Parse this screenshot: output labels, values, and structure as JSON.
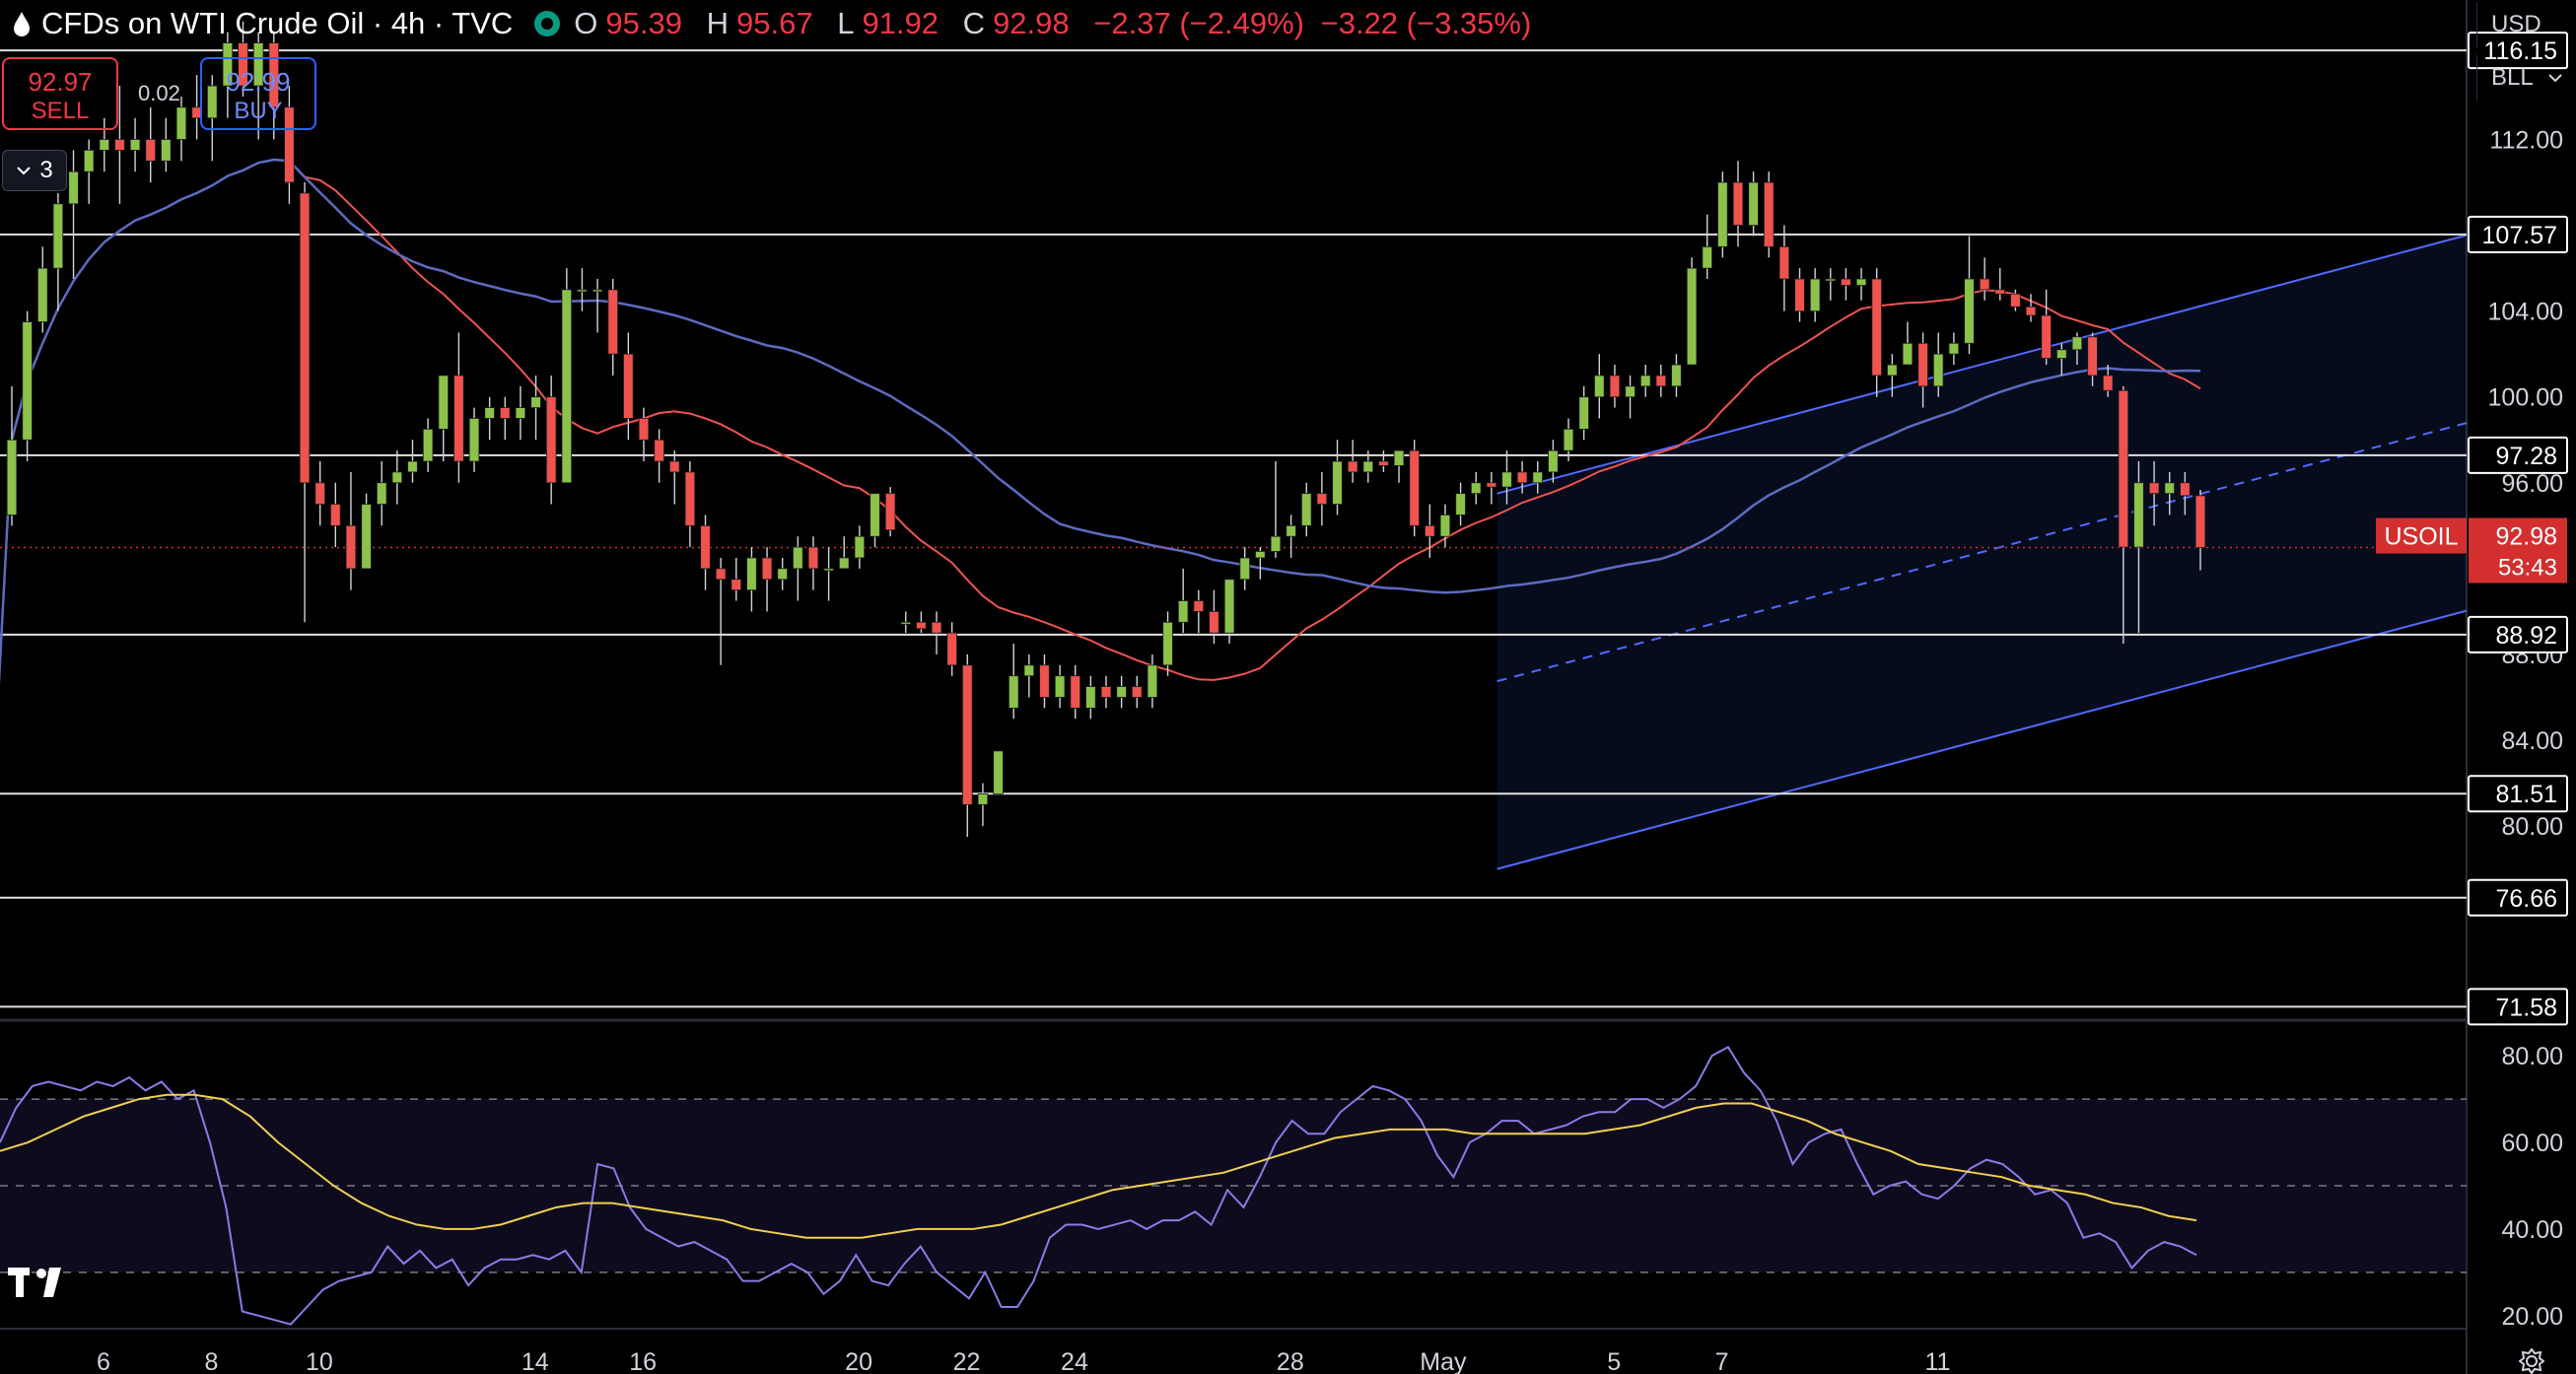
{
  "header": {
    "title": "CFDs on WTI Crude Oil · 4h · TVC",
    "ohlc": {
      "o_label": "O",
      "o": "95.39",
      "h_label": "H",
      "h": "95.67",
      "l_label": "L",
      "l": "91.92",
      "c_label": "C",
      "c": "92.98",
      "change": "−2.37 (−2.49%)",
      "change2": "−3.22 (−3.35%)"
    }
  },
  "trade": {
    "sell_price": "92.97",
    "sell_label": "SELL",
    "spread": "0.02",
    "buy_price": "92.99",
    "buy_label": "BUY"
  },
  "indicators_toggle": {
    "count": "3"
  },
  "currency": {
    "unit": "USD",
    "measure": "BLL"
  },
  "colors": {
    "bg": "#000000",
    "up": "#26a69a",
    "up_body": "#8bc34a",
    "down": "#ef5350",
    "ma_fast": "#ef5350",
    "ma_slow": "#5c6bc0",
    "channel": "#4f6bff",
    "rsi": "#8c7ae6",
    "rsi_ma": "#f0d050",
    "price_tag": "#d32f2f"
  },
  "icons": [
    "oil-drop-icon",
    "market-status-icon",
    "chevron-down-icon",
    "settings-gear-icon",
    "tradingview-logo-icon"
  ],
  "chart_data": {
    "type": "candlestick",
    "symbol": "USOIL",
    "interval": "4h",
    "x_ticks": [
      "6",
      "8",
      "10",
      "14",
      "16",
      "20",
      "22",
      "24",
      "28",
      "May",
      "5",
      "7",
      "11"
    ],
    "price_ylim": [
      71.0,
      118.5
    ],
    "price_y_ticks": [
      "112.00",
      "104.00",
      "100.00",
      "96.00",
      "88.00",
      "84.00",
      "80.00"
    ],
    "level_labels": [
      "116.15",
      "107.57",
      "97.28",
      "88.92",
      "81.51",
      "76.66",
      "71.58"
    ],
    "levels": [
      116.15,
      107.57,
      97.28,
      88.92,
      81.51,
      76.66,
      71.58
    ],
    "last_price": {
      "label": "USOIL",
      "value": "92.98",
      "countdown": "53:43",
      "price": 92.98
    },
    "channel": {
      "start": [
        15.5,
        78
      ],
      "end_upper": [
        37,
        119.5
      ],
      "width": 17.5
    },
    "candles": [
      [
        94.5,
        100.5,
        94,
        98
      ],
      [
        98,
        104,
        97,
        103.5
      ],
      [
        103.5,
        107,
        103,
        106
      ],
      [
        106,
        109.5,
        104,
        109
      ],
      [
        109,
        111.5,
        105.5,
        110.5
      ],
      [
        110.5,
        112,
        109,
        111.5
      ],
      [
        111.5,
        113,
        110.5,
        112
      ],
      [
        112,
        114.5,
        109,
        111.5
      ],
      [
        111.5,
        113,
        110.5,
        112
      ],
      [
        112,
        113.5,
        110,
        111
      ],
      [
        111,
        113,
        110.5,
        112
      ],
      [
        112,
        114,
        111,
        113.5
      ],
      [
        113.5,
        115,
        112,
        113
      ],
      [
        113,
        115,
        111,
        114.5
      ],
      [
        114.5,
        117,
        113,
        116.5
      ],
      [
        116.5,
        117.5,
        114,
        114.5
      ],
      [
        114.5,
        117,
        112,
        116.5
      ],
      [
        116.5,
        117,
        112,
        113.5
      ],
      [
        113.5,
        114.5,
        109,
        110
      ],
      [
        109.5,
        110,
        89.5,
        96
      ],
      [
        96,
        97,
        94,
        95
      ],
      [
        95,
        96,
        93,
        94
      ],
      [
        94,
        96.5,
        91,
        92
      ],
      [
        92,
        95.5,
        92,
        95
      ],
      [
        95,
        97,
        94,
        96
      ],
      [
        96,
        97.5,
        95,
        96.5
      ],
      [
        96.5,
        98,
        96,
        97
      ],
      [
        97,
        99,
        96.5,
        98.5
      ],
      [
        98.5,
        101,
        97,
        101
      ],
      [
        101,
        103,
        96,
        97
      ],
      [
        97,
        99.5,
        96.5,
        99
      ],
      [
        99,
        100,
        98,
        99.5
      ],
      [
        99.5,
        100,
        98,
        99
      ],
      [
        99,
        100.5,
        98,
        99.5
      ],
      [
        99.5,
        101,
        98,
        100
      ],
      [
        100,
        101,
        95,
        96
      ],
      [
        96,
        106,
        96,
        105
      ],
      [
        105,
        106,
        104,
        105
      ],
      [
        105,
        105.5,
        103,
        105
      ],
      [
        105,
        105.5,
        101,
        102
      ],
      [
        102,
        103,
        98,
        99
      ],
      [
        99,
        99.5,
        97,
        98
      ],
      [
        98,
        98.5,
        96,
        97
      ],
      [
        97,
        97.5,
        95,
        96.5
      ],
      [
        96.5,
        97,
        93,
        94
      ],
      [
        94,
        94.5,
        91,
        92
      ],
      [
        92,
        92.5,
        87.5,
        91.5
      ],
      [
        91.5,
        92.5,
        90.5,
        91
      ],
      [
        91,
        93,
        90,
        92.5
      ],
      [
        92.5,
        93,
        90,
        91.5
      ],
      [
        91.5,
        92.5,
        91,
        92
      ],
      [
        92,
        93.5,
        90.5,
        93
      ],
      [
        93,
        93.5,
        91,
        92
      ],
      [
        92,
        93,
        90.5,
        92
      ],
      [
        92,
        93.5,
        92,
        92.5
      ],
      [
        92.5,
        94,
        92,
        93.5
      ],
      [
        93.5,
        95.5,
        93,
        95.5
      ],
      [
        95.5,
        95.8,
        93.5,
        93.8
      ],
      [
        89.5,
        90,
        89,
        89.5
      ],
      [
        89.5,
        90,
        89,
        89.2
      ],
      [
        89.5,
        90,
        88,
        89
      ],
      [
        89,
        89.5,
        87,
        87.5
      ],
      [
        87.5,
        88,
        79.5,
        81
      ],
      [
        81,
        82,
        80,
        81.5
      ],
      [
        81.5,
        83.5,
        81.5,
        83.5
      ],
      [
        85.5,
        88.5,
        85,
        87
      ],
      [
        87,
        88,
        86,
        87.5
      ],
      [
        87.5,
        88,
        85.5,
        86
      ],
      [
        86,
        87.5,
        85.5,
        87
      ],
      [
        87,
        87.5,
        85,
        85.5
      ],
      [
        85.5,
        87,
        85,
        86.5
      ],
      [
        86.5,
        87,
        85.5,
        86
      ],
      [
        86,
        87,
        85.5,
        86.5
      ],
      [
        86.5,
        87,
        85.5,
        86
      ],
      [
        86,
        88,
        85.5,
        87.5
      ],
      [
        87.5,
        90,
        87,
        89.5
      ],
      [
        89.5,
        92,
        89,
        90.5
      ],
      [
        90.5,
        91,
        89,
        90
      ],
      [
        90,
        91,
        88.5,
        89
      ],
      [
        89,
        91.5,
        88.5,
        91.5
      ],
      [
        91.5,
        93,
        91,
        92.5
      ],
      [
        92.5,
        93,
        91.5,
        92.8
      ],
      [
        92.8,
        97,
        92.5,
        93.5
      ],
      [
        93.5,
        94.5,
        92.5,
        94
      ],
      [
        94,
        96,
        93.5,
        95.5
      ],
      [
        95.5,
        96.5,
        94,
        95
      ],
      [
        95,
        98,
        94.5,
        97
      ],
      [
        97,
        98,
        96,
        96.5
      ],
      [
        96.5,
        97.5,
        96,
        97
      ],
      [
        97,
        97.5,
        96.5,
        96.8
      ],
      [
        96.8,
        97.5,
        96,
        97.5
      ],
      [
        97.5,
        98,
        93.5,
        94
      ],
      [
        94,
        95,
        92.5,
        93.5
      ],
      [
        93.5,
        95,
        93,
        94.5
      ],
      [
        94.5,
        96,
        94,
        95.5
      ],
      [
        95.5,
        96.5,
        95,
        96
      ],
      [
        96,
        96.5,
        95,
        95.8
      ],
      [
        95.8,
        97.5,
        95,
        96.5
      ],
      [
        96.5,
        97,
        95.5,
        96
      ],
      [
        96,
        97,
        95.5,
        96.5
      ],
      [
        96.5,
        98,
        96,
        97.5
      ],
      [
        97.5,
        99,
        97,
        98.5
      ],
      [
        98.5,
        100.5,
        98,
        100
      ],
      [
        100,
        102,
        99,
        101
      ],
      [
        101,
        101.5,
        99.5,
        100
      ],
      [
        100,
        101,
        99,
        100.5
      ],
      [
        100.5,
        101.5,
        100,
        101
      ],
      [
        101,
        101.5,
        100,
        100.5
      ],
      [
        100.5,
        102,
        100,
        101.5
      ],
      [
        101.5,
        106.5,
        101.5,
        106
      ],
      [
        106,
        108.5,
        105.5,
        107
      ],
      [
        107,
        110.5,
        106.5,
        110
      ],
      [
        110,
        111,
        107,
        108
      ],
      [
        108,
        110.5,
        107.5,
        110
      ],
      [
        110,
        110.5,
        106.5,
        107
      ],
      [
        107,
        108,
        104,
        105.5
      ],
      [
        105.5,
        106,
        103.5,
        104
      ],
      [
        104,
        106,
        103.5,
        105.5
      ],
      [
        105.5,
        106,
        104.5,
        105.5
      ],
      [
        105.5,
        106,
        104.5,
        105.2
      ],
      [
        105.2,
        106,
        104.5,
        105.5
      ],
      [
        105.5,
        106,
        100,
        101
      ],
      [
        101,
        102,
        100,
        101.5
      ],
      [
        101.5,
        103.5,
        101.5,
        102.5
      ],
      [
        102.5,
        103,
        99.5,
        100.5
      ],
      [
        100.5,
        103,
        100,
        102
      ],
      [
        102,
        103,
        101.5,
        102.5
      ],
      [
        102.5,
        107.5,
        102,
        105.5
      ],
      [
        105.5,
        106.5,
        104.5,
        105
      ],
      [
        105,
        106,
        104.5,
        104.8
      ],
      [
        104.8,
        105,
        104,
        104.2
      ],
      [
        104.2,
        104.8,
        103.5,
        103.8
      ],
      [
        103.8,
        105,
        101.5,
        101.8
      ],
      [
        101.8,
        102.5,
        101,
        102.2
      ],
      [
        102.2,
        103,
        101.5,
        102.8
      ],
      [
        102.8,
        103,
        100.5,
        101
      ],
      [
        101,
        101.5,
        100,
        100.3
      ],
      [
        100.3,
        100.5,
        88.5,
        93
      ],
      [
        93,
        97,
        89,
        96
      ],
      [
        96,
        97,
        94,
        95.5
      ],
      [
        95.5,
        96.5,
        94.5,
        96
      ],
      [
        96,
        96.5,
        94.5,
        95.4
      ],
      [
        95.4,
        95.67,
        91.92,
        92.98
      ]
    ],
    "rsi_ylim": [
      17,
      88
    ],
    "rsi_y_ticks": [
      "80.00",
      "60.00",
      "40.00",
      "20.00"
    ],
    "rsi_bands": [
      70,
      50,
      30
    ],
    "rsi": [
      60,
      68,
      73,
      74,
      73,
      72,
      74,
      73,
      75,
      72,
      74,
      70,
      72,
      60,
      45,
      21,
      20,
      19,
      18,
      22,
      26,
      28,
      29,
      30,
      36,
      32,
      35,
      31,
      33,
      27,
      31,
      33,
      33,
      34,
      33,
      35,
      30,
      55,
      54,
      45,
      40,
      38,
      36,
      37,
      35,
      33,
      28,
      28,
      30,
      32,
      30,
      25,
      28,
      34,
      28,
      27,
      32,
      36,
      30,
      27,
      24,
      30,
      22,
      22,
      28,
      38,
      41,
      41,
      40,
      41,
      42,
      40,
      42,
      42,
      44,
      41,
      49,
      45,
      52,
      60,
      65,
      62,
      62,
      67,
      70,
      73,
      72,
      70,
      65,
      57,
      52,
      60,
      62,
      65,
      65,
      62,
      63,
      64,
      66,
      67,
      67,
      70,
      70,
      68,
      70,
      73,
      80,
      82,
      76,
      72,
      65,
      55,
      60,
      62,
      63,
      55,
      48,
      50,
      51,
      48,
      47,
      50,
      54,
      56,
      55,
      52,
      48,
      49,
      46,
      38,
      39,
      37,
      31,
      35,
      37,
      36,
      34
    ],
    "rsi_ma": [
      58,
      60,
      63,
      66,
      68,
      70,
      71,
      71,
      70,
      66,
      60,
      55,
      50,
      46,
      43,
      41,
      40,
      40,
      41,
      43,
      45,
      46,
      46,
      45,
      44,
      43,
      42,
      40,
      39,
      38,
      38,
      38,
      39,
      40,
      40,
      40,
      41,
      43,
      45,
      47,
      49,
      50,
      51,
      52,
      53,
      55,
      57,
      59,
      61,
      62,
      63,
      63,
      63,
      62,
      62,
      62,
      62,
      62,
      63,
      64,
      66,
      68,
      69,
      69,
      67,
      65,
      62,
      60,
      58,
      55,
      54,
      53,
      52,
      50,
      49,
      48,
      46,
      45,
      43,
      42
    ]
  }
}
